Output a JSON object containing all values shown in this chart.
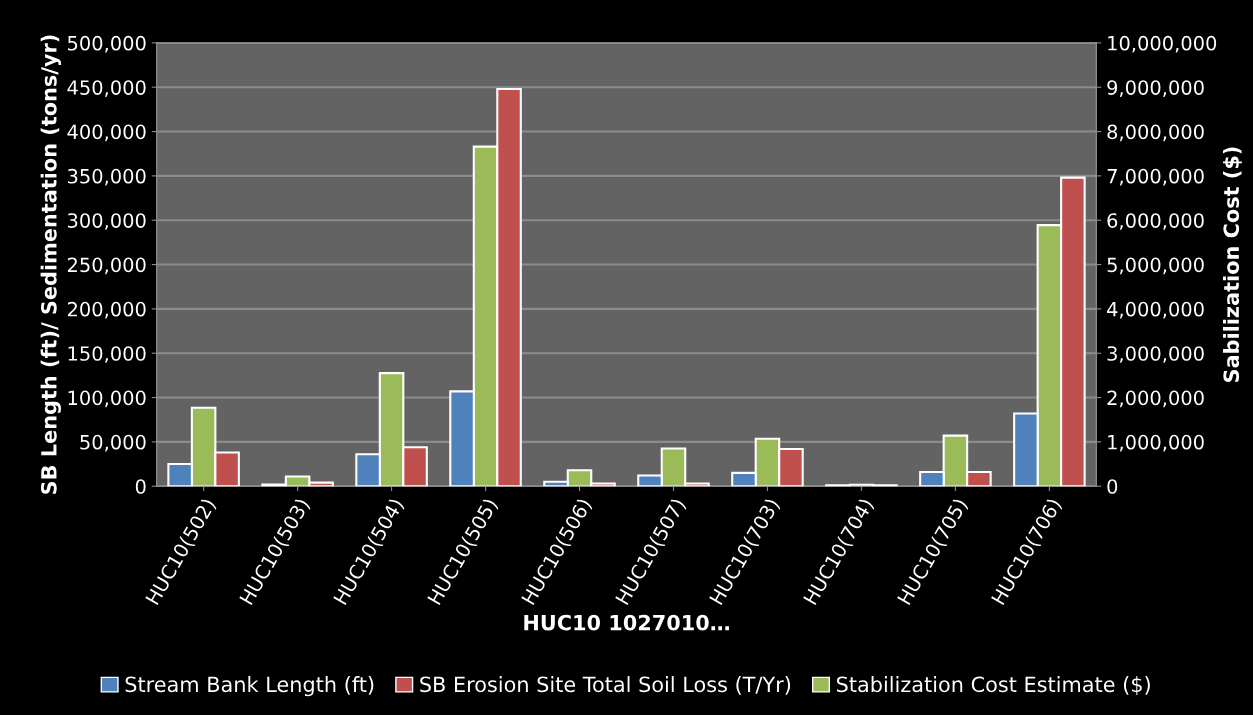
{
  "chart_data": {
    "type": "bar",
    "xlabel": "HUC10 1027010…",
    "ylabel": "SB Length (ft)/ Sedimentation (tons/yr)",
    "y2label": "Sabilization Cost ($)",
    "categories": [
      "HUC10(502)",
      "HUC10(503)",
      "HUC10(504)",
      "HUC10(505)",
      "HUC10(506)",
      "HUC10(507)",
      "HUC10(703)",
      "HUC10(704)",
      "HUC10(705)",
      "HUC10(706)"
    ],
    "series": [
      {
        "name": "Stream Bank Length (ft)",
        "color": "#4f81bd",
        "values": [
          25000,
          2000,
          36000,
          107000,
          5000,
          12000,
          15000,
          1000,
          16000,
          82000
        ]
      },
      {
        "name": "SB Erosion Site Total Soil Loss (T/Yr)",
        "color": "#c0504d",
        "values": [
          38000,
          4000,
          44000,
          448000,
          3000,
          3000,
          42000,
          1000,
          16000,
          348000
        ]
      },
      {
        "name": "Stabilization Cost Estimate ($)",
        "color": "#9bbb59",
        "axis": "y2",
        "values": [
          1770000,
          220000,
          2550000,
          7660000,
          360000,
          850000,
          1070000,
          30000,
          1140000,
          5890000
        ]
      }
    ],
    "ylim": [
      0,
      500000
    ],
    "yticks": [
      {
        "value": 0,
        "label": "0"
      },
      {
        "value": 50000,
        "label": "50,000"
      },
      {
        "value": 100000,
        "label": "100,000"
      },
      {
        "value": 150000,
        "label": "150,000"
      },
      {
        "value": 200000,
        "label": "200,000"
      },
      {
        "value": 250000,
        "label": "250,000"
      },
      {
        "value": 300000,
        "label": "300,000"
      },
      {
        "value": 350000,
        "label": "350,000"
      },
      {
        "value": 400000,
        "label": "400,000"
      },
      {
        "value": 450000,
        "label": "450,000"
      },
      {
        "value": 500000,
        "label": "500,000"
      }
    ],
    "y2lim": [
      0,
      10000000
    ],
    "y2ticks": [
      {
        "value": 0,
        "label": "0"
      },
      {
        "value": 1000000,
        "label": "1,000,000"
      },
      {
        "value": 2000000,
        "label": "2,000,000"
      },
      {
        "value": 3000000,
        "label": "3,000,000"
      },
      {
        "value": 4000000,
        "label": "4,000,000"
      },
      {
        "value": 5000000,
        "label": "5,000,000"
      },
      {
        "value": 6000000,
        "label": "6,000,000"
      },
      {
        "value": 7000000,
        "label": "7,000,000"
      },
      {
        "value": 8000000,
        "label": "8,000,000"
      },
      {
        "value": 9000000,
        "label": "9,000,000"
      },
      {
        "value": 10000000,
        "label": "10,000,000"
      }
    ],
    "grid": "y",
    "legend": "bottom"
  }
}
